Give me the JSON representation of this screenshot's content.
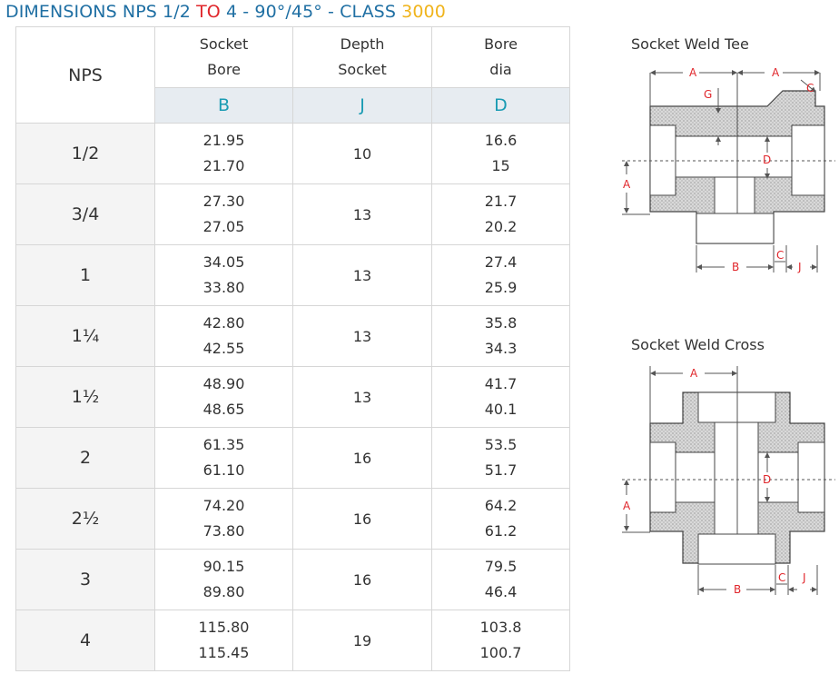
{
  "title": {
    "part1": "DIMENSIONS NPS 1/2 ",
    "part2": "TO",
    "part3": " 4 - 90°/45° - CLASS ",
    "part4": "3000"
  },
  "table": {
    "nps_header": "NPS",
    "columns": [
      {
        "line1": "Socket",
        "line2": "Bore",
        "symbol": "B"
      },
      {
        "line1": "Depth",
        "line2": "Socket",
        "symbol": "J"
      },
      {
        "line1": "Bore",
        "line2": "dia",
        "symbol": "D"
      }
    ],
    "rows": [
      {
        "nps": "1/2",
        "b_max": "21.95",
        "b_min": "21.70",
        "j": "10",
        "d_max": "16.6",
        "d_min": "15"
      },
      {
        "nps": "3/4",
        "b_max": "27.30",
        "b_min": "27.05",
        "j": "13",
        "d_max": "21.7",
        "d_min": "20.2"
      },
      {
        "nps": "1",
        "b_max": "34.05",
        "b_min": "33.80",
        "j": "13",
        "d_max": "27.4",
        "d_min": "25.9"
      },
      {
        "nps": "1¼",
        "b_max": "42.80",
        "b_min": "42.55",
        "j": "13",
        "d_max": "35.8",
        "d_min": "34.3"
      },
      {
        "nps": "1½",
        "b_max": "48.90",
        "b_min": "48.65",
        "j": "13",
        "d_max": "41.7",
        "d_min": "40.1"
      },
      {
        "nps": "2",
        "b_max": "61.35",
        "b_min": "61.10",
        "j": "16",
        "d_max": "53.5",
        "d_min": "51.7"
      },
      {
        "nps": "2½",
        "b_max": "74.20",
        "b_min": "73.80",
        "j": "16",
        "d_max": "64.2",
        "d_min": "61.2"
      },
      {
        "nps": "3",
        "b_max": "90.15",
        "b_min": "89.80",
        "j": "16",
        "d_max": "79.5",
        "d_min": "46.4"
      },
      {
        "nps": "4",
        "b_max": "115.80",
        "b_min": "115.45",
        "j": "19",
        "d_max": "103.8",
        "d_min": "100.7"
      }
    ]
  },
  "diagrams": {
    "tee": {
      "title": "Socket Weld Tee",
      "labels": {
        "a": "A",
        "g": "G",
        "c": "C",
        "d": "D",
        "b": "B",
        "j": "J"
      }
    },
    "cross": {
      "title": "Socket Weld Cross",
      "labels": {
        "a": "A",
        "c": "C",
        "d": "D",
        "b": "B",
        "j": "J"
      }
    }
  },
  "colors": {
    "title_blue": "#1f6fa3",
    "title_red": "#e0262b",
    "title_yellow": "#f0b41c",
    "symbol_teal": "#1a9bb3",
    "dim_red": "#e0262b"
  }
}
